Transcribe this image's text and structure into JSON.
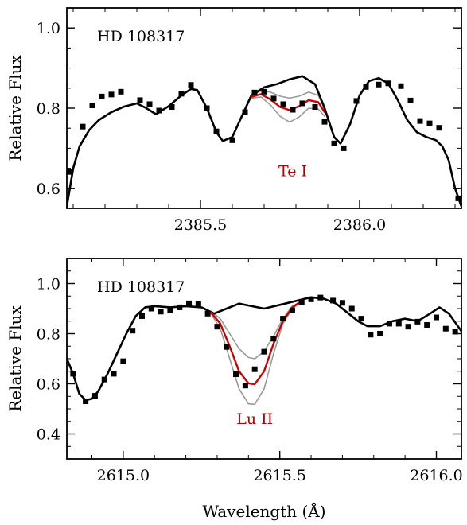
{
  "chart_data": [
    {
      "type": "line",
      "panel": "top",
      "star_label": "HD 108317",
      "line_label": "Te I",
      "xlabel": "",
      "ylabel": "Relative Flux",
      "xlim": [
        2385.08,
        2386.32
      ],
      "ylim": [
        0.55,
        1.05
      ],
      "x_ticks": [
        2385.5,
        2386.0
      ],
      "x_tick_labels": [
        "2385.5",
        "2386.0"
      ],
      "x_minor_step": 0.1,
      "y_ticks": [
        0.6,
        0.8,
        1.0
      ],
      "y_tick_labels": [
        "0.6",
        "0.8",
        "1.0"
      ],
      "y_minor_step": 0.05,
      "colors": {
        "observed": "#000000",
        "best_fit": "#cc0000",
        "bounds": "#999999",
        "no_element": "#000000",
        "label": "#b00000"
      },
      "observed": {
        "x": [
          2385.09,
          2385.13,
          2385.16,
          2385.19,
          2385.22,
          2385.25,
          2385.31,
          2385.34,
          2385.37,
          2385.41,
          2385.44,
          2385.47,
          2385.52,
          2385.55,
          2385.6,
          2385.64,
          2385.67,
          2385.7,
          2385.73,
          2385.76,
          2385.79,
          2385.82,
          2385.86,
          2385.89,
          2385.92,
          2385.95,
          2385.99,
          2386.02,
          2386.06,
          2386.09,
          2386.13,
          2386.16,
          2386.19,
          2386.22,
          2386.25,
          2386.31
        ],
        "y": [
          0.641,
          0.754,
          0.807,
          0.829,
          0.834,
          0.841,
          0.82,
          0.81,
          0.794,
          0.803,
          0.836,
          0.858,
          0.8,
          0.742,
          0.72,
          0.79,
          0.839,
          0.841,
          0.824,
          0.81,
          0.796,
          0.812,
          0.803,
          0.766,
          0.712,
          0.7,
          0.818,
          0.853,
          0.859,
          0.862,
          0.855,
          0.819,
          0.768,
          0.762,
          0.751,
          0.575
        ]
      },
      "series": [
        {
          "role": "no_element",
          "x": [
            2385.08,
            2385.1,
            2385.12,
            2385.15,
            2385.18,
            2385.22,
            2385.26,
            2385.3,
            2385.33,
            2385.36,
            2385.4,
            2385.44,
            2385.47,
            2385.49,
            2385.52,
            2385.55,
            2385.57,
            2385.6,
            2385.63,
            2385.66,
            2385.7,
            2385.74,
            2385.78,
            2385.82,
            2385.86,
            2385.89,
            2385.92,
            2385.94,
            2385.97,
            2386.0,
            2386.03,
            2386.06,
            2386.09,
            2386.12,
            2386.15,
            2386.18,
            2386.21,
            2386.24,
            2386.26,
            2386.28,
            2386.3,
            2386.32
          ],
          "y": [
            0.555,
            0.65,
            0.705,
            0.745,
            0.77,
            0.79,
            0.804,
            0.812,
            0.8,
            0.785,
            0.805,
            0.832,
            0.848,
            0.845,
            0.8,
            0.74,
            0.718,
            0.728,
            0.78,
            0.832,
            0.852,
            0.86,
            0.872,
            0.88,
            0.86,
            0.8,
            0.728,
            0.712,
            0.76,
            0.832,
            0.868,
            0.875,
            0.862,
            0.82,
            0.77,
            0.74,
            0.728,
            0.72,
            0.705,
            0.67,
            0.6,
            0.555
          ]
        },
        {
          "role": "upper_bound",
          "x": [
            2385.66,
            2385.69,
            2385.72,
            2385.75,
            2385.78,
            2385.81,
            2385.84,
            2385.87,
            2385.89
          ],
          "y": [
            0.832,
            0.843,
            0.84,
            0.83,
            0.825,
            0.83,
            0.84,
            0.832,
            0.8
          ]
        },
        {
          "role": "best_fit",
          "x": [
            2385.66,
            2385.69,
            2385.72,
            2385.75,
            2385.78,
            2385.81,
            2385.84,
            2385.87,
            2385.89
          ],
          "y": [
            0.828,
            0.835,
            0.822,
            0.803,
            0.795,
            0.805,
            0.82,
            0.815,
            0.79
          ]
        },
        {
          "role": "lower_bound",
          "x": [
            2385.66,
            2385.69,
            2385.72,
            2385.75,
            2385.78,
            2385.81,
            2385.84,
            2385.87,
            2385.89
          ],
          "y": [
            0.825,
            0.828,
            0.808,
            0.78,
            0.765,
            0.778,
            0.8,
            0.798,
            0.78
          ]
        }
      ]
    },
    {
      "type": "line",
      "panel": "bottom",
      "star_label": "HD 108317",
      "line_label": "Lu II",
      "xlabel": "Wavelength (Å)",
      "ylabel": "Relative Flux",
      "xlim": [
        2614.82,
        2616.08
      ],
      "ylim": [
        0.3,
        1.1
      ],
      "x_ticks": [
        2615.0,
        2615.5,
        2616.0
      ],
      "x_tick_labels": [
        "2615.0",
        "2615.5",
        "2616.0"
      ],
      "x_minor_step": 0.1,
      "y_ticks": [
        0.4,
        0.6,
        0.8,
        1.0
      ],
      "y_tick_labels": [
        "0.4",
        "0.6",
        "0.8",
        "1.0"
      ],
      "y_minor_step": 0.05,
      "colors": {
        "observed": "#000000",
        "best_fit": "#cc0000",
        "bounds": "#999999",
        "no_element": "#000000",
        "label": "#b00000"
      },
      "observed": {
        "x": [
          2614.84,
          2614.88,
          2614.91,
          2614.94,
          2614.97,
          2615.0,
          2615.03,
          2615.06,
          2615.09,
          2615.12,
          2615.15,
          2615.18,
          2615.21,
          2615.24,
          2615.27,
          2615.3,
          2615.33,
          2615.36,
          2615.39,
          2615.42,
          2615.45,
          2615.48,
          2615.51,
          2615.54,
          2615.57,
          2615.6,
          2615.63,
          2615.67,
          2615.7,
          2615.73,
          2615.76,
          2615.79,
          2615.82,
          2615.85,
          2615.88,
          2615.91,
          2615.94,
          2615.97,
          2616.0,
          2616.03,
          2616.06
        ],
        "y": [
          0.64,
          0.53,
          0.552,
          0.617,
          0.64,
          0.69,
          0.812,
          0.87,
          0.9,
          0.888,
          0.892,
          0.905,
          0.921,
          0.918,
          0.88,
          0.828,
          0.747,
          0.638,
          0.593,
          0.658,
          0.728,
          0.78,
          0.86,
          0.893,
          0.925,
          0.937,
          0.944,
          0.932,
          0.923,
          0.9,
          0.86,
          0.796,
          0.8,
          0.84,
          0.84,
          0.828,
          0.848,
          0.835,
          0.865,
          0.82,
          0.808
        ]
      },
      "series": [
        {
          "role": "no_element",
          "x": [
            2614.82,
            2614.84,
            2614.86,
            2614.88,
            2614.9,
            2614.92,
            2614.95,
            2614.98,
            2615.01,
            2615.04,
            2615.07,
            2615.1,
            2615.15,
            2615.2,
            2615.25,
            2615.29,
            2615.33,
            2615.37,
            2615.41,
            2615.45,
            2615.5,
            2615.55,
            2615.6,
            2615.64,
            2615.68,
            2615.72,
            2615.75,
            2615.78,
            2615.82,
            2615.86,
            2615.9,
            2615.94,
            2615.98,
            2616.01,
            2616.04,
            2616.08
          ],
          "y": [
            0.7,
            0.64,
            0.56,
            0.535,
            0.54,
            0.57,
            0.64,
            0.72,
            0.8,
            0.87,
            0.905,
            0.91,
            0.905,
            0.91,
            0.905,
            0.88,
            0.9,
            0.92,
            0.91,
            0.9,
            0.915,
            0.93,
            0.945,
            0.94,
            0.92,
            0.88,
            0.85,
            0.83,
            0.83,
            0.85,
            0.86,
            0.85,
            0.88,
            0.905,
            0.88,
            0.81
          ]
        },
        {
          "role": "upper_bound",
          "x": [
            2615.28,
            2615.31,
            2615.34,
            2615.37,
            2615.4,
            2615.42,
            2615.45,
            2615.48,
            2615.51,
            2615.54,
            2615.57
          ],
          "y": [
            0.89,
            0.86,
            0.8,
            0.74,
            0.705,
            0.7,
            0.73,
            0.79,
            0.86,
            0.91,
            0.93
          ]
        },
        {
          "role": "best_fit",
          "x": [
            2615.28,
            2615.31,
            2615.34,
            2615.37,
            2615.4,
            2615.42,
            2615.45,
            2615.48,
            2615.51,
            2615.54,
            2615.57
          ],
          "y": [
            0.885,
            0.84,
            0.75,
            0.65,
            0.602,
            0.598,
            0.65,
            0.76,
            0.85,
            0.905,
            0.93
          ]
        },
        {
          "role": "lower_bound",
          "x": [
            2615.28,
            2615.31,
            2615.34,
            2615.37,
            2615.4,
            2615.42,
            2615.45,
            2615.48,
            2615.51,
            2615.54,
            2615.57
          ],
          "y": [
            0.88,
            0.82,
            0.7,
            0.58,
            0.52,
            0.518,
            0.58,
            0.72,
            0.84,
            0.9,
            0.928
          ]
        }
      ]
    }
  ]
}
